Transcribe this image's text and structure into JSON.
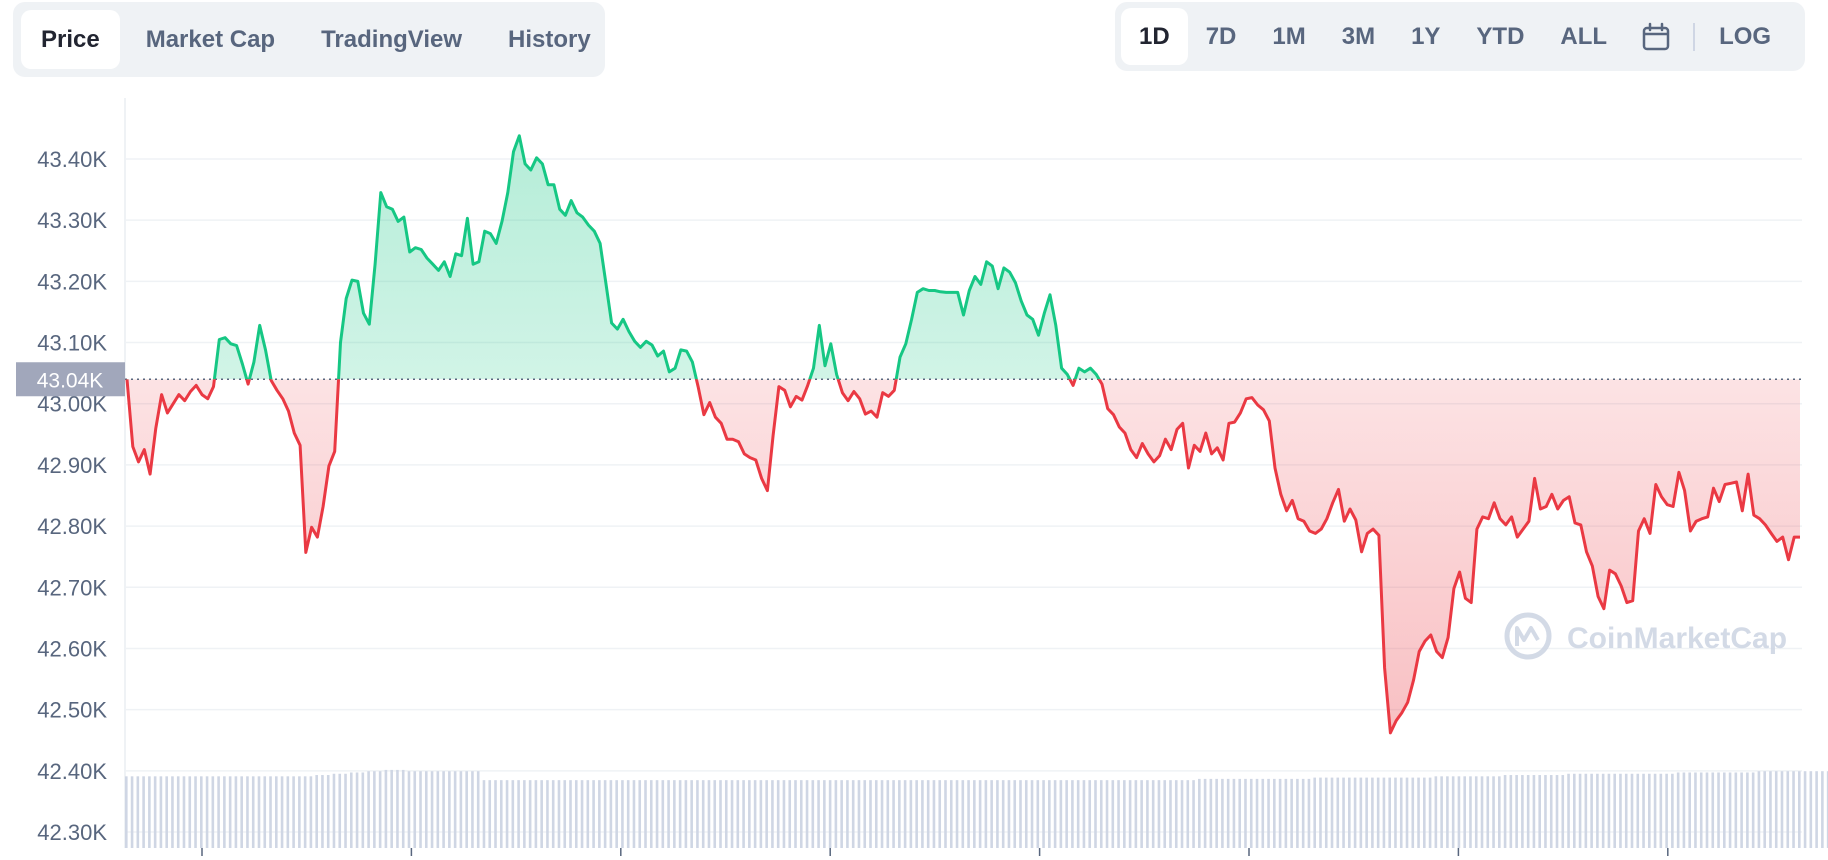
{
  "tabs": [
    {
      "label": "Price",
      "active": true
    },
    {
      "label": "Market Cap",
      "active": false
    },
    {
      "label": "TradingView",
      "active": false
    },
    {
      "label": "History",
      "active": false
    }
  ],
  "ranges": [
    {
      "label": "1D",
      "active": true
    },
    {
      "label": "7D",
      "active": false
    },
    {
      "label": "1M",
      "active": false
    },
    {
      "label": "3M",
      "active": false
    },
    {
      "label": "1Y",
      "active": false
    },
    {
      "label": "YTD",
      "active": false
    },
    {
      "label": "ALL",
      "active": false
    }
  ],
  "calendar_icon": "calendar-icon",
  "log_label": "LOG",
  "watermark": {
    "text": "CoinMarketCap",
    "icon": "coinmarketcap-logo-icon"
  },
  "colors": {
    "up": "#16c784",
    "down": "#ea3943",
    "grid": "#eff2f5",
    "volume": "#cfd6e4",
    "reference_badge": "#a1a7bb"
  },
  "chart_data": {
    "type": "line",
    "ylim": [
      42300,
      43500
    ],
    "yticks": [
      42300,
      42400,
      42500,
      42600,
      42700,
      42800,
      42900,
      43000,
      43100,
      43200,
      43300,
      43400
    ],
    "ytick_labels": [
      "42.30K",
      "42.40K",
      "42.50K",
      "42.60K",
      "42.70K",
      "42.80K",
      "42.90K",
      "43.00K",
      "43.10K",
      "43.20K",
      "43.30K",
      "43.40K"
    ],
    "reference_value": 43040,
    "reference_label": "43.04K",
    "series": [
      {
        "values": [
          43040,
          42930,
          42905,
          42925,
          42885,
          42960,
          43015,
          42985,
          43000,
          43015,
          43005,
          43020,
          43030,
          43015,
          43008,
          43028,
          43105,
          43108,
          43098,
          43095,
          43065,
          43032,
          43068,
          43128,
          43088,
          43038,
          43022,
          43008,
          42988,
          42952,
          42932,
          42757,
          42798,
          42782,
          42832,
          42898,
          42922,
          43100,
          43172,
          43202,
          43200,
          43148,
          43130,
          43228,
          43345,
          43322,
          43318,
          43298,
          43305,
          43248,
          43255,
          43252,
          43238,
          43228,
          43218,
          43232,
          43208,
          43245,
          43242,
          43303,
          43228,
          43232,
          43282,
          43278,
          43262,
          43298,
          43345,
          43412,
          43438,
          43392,
          43382,
          43402,
          43392,
          43358,
          43358,
          43318,
          43308,
          43332,
          43312,
          43305,
          43292,
          43282,
          43262,
          43198,
          43132,
          43122,
          43138,
          43118,
          43102,
          43092,
          43102,
          43096,
          43078,
          43086,
          43052,
          43058,
          43088,
          43086,
          43068,
          43028,
          42982,
          43002,
          42978,
          42968,
          42942,
          42942,
          42938,
          42918,
          42912,
          42908,
          42878,
          42858,
          42948,
          43028,
          43022,
          42995,
          43012,
          43006,
          43030,
          43058,
          43128,
          43062,
          43098,
          43048,
          43018,
          43005,
          43020,
          43008,
          42983,
          42988,
          42978,
          43018,
          43012,
          43022,
          43076,
          43098,
          43138,
          43182,
          43188,
          43185,
          43185,
          43183,
          43182,
          43182,
          43182,
          43145,
          43185,
          43208,
          43195,
          43232,
          43225,
          43188,
          43222,
          43215,
          43198,
          43168,
          43145,
          43138,
          43112,
          43148,
          43178,
          43128,
          43058,
          43048,
          43030,
          43058,
          43052,
          43058,
          43048,
          43032,
          42992,
          42982,
          42962,
          42952,
          42925,
          42912,
          42935,
          42918,
          42905,
          42915,
          42942,
          42925,
          42958,
          42968,
          42895,
          42932,
          42922,
          42952,
          42918,
          42928,
          42908,
          42968,
          42970,
          42985,
          43008,
          43010,
          42998,
          42990,
          42972,
          42895,
          42852,
          42825,
          42842,
          42812,
          42808,
          42792,
          42788,
          42795,
          42812,
          42838,
          42860,
          42808,
          42828,
          42810,
          42758,
          42788,
          42795,
          42785,
          42568,
          42462,
          42482,
          42495,
          42512,
          42548,
          42595,
          42612,
          42622,
          42595,
          42585,
          42618,
          42698,
          42725,
          42682,
          42675,
          42795,
          42815,
          42812,
          42838,
          42812,
          42802,
          42815,
          42782,
          42795,
          42808,
          42878,
          42828,
          42832,
          42852,
          42828,
          42842,
          42848,
          42805,
          42802,
          42758,
          42735,
          42685,
          42665,
          42728,
          42722,
          42702,
          42675,
          42678,
          42792,
          42812,
          42788,
          42868,
          42848,
          42835,
          42832,
          42888,
          42858,
          42792,
          42808,
          42812,
          42815,
          42862,
          42840,
          42868,
          42870,
          42872,
          42825,
          42885,
          42818,
          42812,
          42802,
          42788,
          42775,
          42782,
          42745,
          42782,
          42782
        ]
      }
    ],
    "volume": [
      0.56,
      0.56,
      0.56,
      0.56,
      0.56,
      0.56,
      0.56,
      0.56,
      0.56,
      0.56,
      0.56,
      0.56,
      0.56,
      0.56,
      0.56,
      0.56,
      0.56,
      0.56,
      0.56,
      0.56,
      0.56,
      0.56,
      0.56,
      0.56,
      0.56,
      0.56,
      0.56,
      0.56,
      0.56,
      0.56,
      0.56,
      0.56,
      0.56,
      0.57,
      0.57,
      0.57,
      0.58,
      0.58,
      0.58,
      0.59,
      0.59,
      0.59,
      0.6,
      0.6,
      0.6,
      0.61,
      0.61,
      0.61,
      0.61,
      0.6,
      0.6,
      0.6,
      0.6,
      0.6,
      0.6,
      0.6,
      0.6,
      0.6,
      0.6,
      0.6,
      0.6,
      0.6,
      0.53,
      0.53,
      0.53,
      0.53,
      0.53,
      0.53,
      0.53,
      0.53,
      0.53,
      0.53,
      0.53,
      0.53,
      0.53,
      0.53,
      0.53,
      0.53,
      0.53,
      0.53,
      0.53,
      0.53,
      0.53,
      0.53,
      0.53,
      0.53,
      0.53,
      0.53,
      0.53,
      0.53,
      0.53,
      0.53,
      0.53,
      0.53,
      0.53,
      0.53,
      0.53,
      0.53,
      0.53,
      0.53,
      0.53,
      0.53,
      0.53,
      0.53,
      0.53,
      0.53,
      0.53,
      0.53,
      0.53,
      0.53,
      0.53,
      0.53,
      0.53,
      0.53,
      0.53,
      0.53,
      0.53,
      0.53,
      0.53,
      0.53,
      0.53,
      0.53,
      0.53,
      0.53,
      0.53,
      0.53,
      0.53,
      0.53,
      0.53,
      0.53,
      0.53,
      0.53,
      0.53,
      0.53,
      0.53,
      0.53,
      0.53,
      0.53,
      0.53,
      0.53,
      0.53,
      0.53,
      0.53,
      0.53,
      0.53,
      0.53,
      0.53,
      0.53,
      0.53,
      0.53,
      0.53,
      0.53,
      0.53,
      0.53,
      0.53,
      0.53,
      0.53,
      0.53,
      0.53,
      0.53,
      0.53,
      0.53,
      0.53,
      0.53,
      0.53,
      0.53,
      0.53,
      0.53,
      0.53,
      0.53,
      0.53,
      0.53,
      0.53,
      0.53,
      0.53,
      0.53,
      0.53,
      0.53,
      0.53,
      0.53,
      0.53,
      0.53,
      0.53,
      0.53,
      0.53,
      0.53,
      0.54,
      0.54,
      0.54,
      0.54,
      0.54,
      0.54,
      0.54,
      0.54,
      0.54,
      0.54,
      0.54,
      0.54,
      0.54,
      0.54,
      0.54,
      0.54,
      0.54,
      0.54,
      0.54,
      0.54,
      0.55,
      0.55,
      0.55,
      0.55,
      0.55,
      0.55,
      0.55,
      0.55,
      0.55,
      0.55,
      0.55,
      0.55,
      0.55,
      0.55,
      0.55,
      0.55,
      0.55,
      0.55,
      0.55,
      0.55,
      0.55,
      0.56,
      0.56,
      0.56,
      0.56,
      0.56,
      0.56,
      0.56,
      0.56,
      0.56,
      0.56,
      0.56,
      0.56,
      0.57,
      0.57,
      0.57,
      0.57,
      0.57,
      0.57,
      0.57,
      0.57,
      0.57,
      0.57,
      0.57,
      0.58,
      0.58,
      0.58,
      0.58,
      0.58,
      0.58,
      0.58,
      0.58,
      0.58,
      0.58,
      0.58,
      0.58,
      0.58,
      0.58,
      0.58,
      0.58,
      0.58,
      0.58,
      0.58,
      0.59,
      0.59,
      0.59,
      0.59,
      0.59,
      0.59,
      0.59,
      0.59,
      0.59,
      0.59,
      0.59,
      0.59,
      0.59,
      0.59,
      0.6,
      0.6,
      0.6,
      0.6,
      0.6,
      0.6,
      0.6,
      0.6,
      0.6,
      0.6,
      0.6,
      0.6,
      0.6,
      0.6,
      0.6,
      0.6,
      0.6,
      0.6,
      0.6,
      0.6,
      0.6,
      0.6,
      0.61,
      0.61,
      0.61,
      0.61,
      0.61,
      0.61,
      0.61,
      0.61
    ],
    "grid": true
  }
}
